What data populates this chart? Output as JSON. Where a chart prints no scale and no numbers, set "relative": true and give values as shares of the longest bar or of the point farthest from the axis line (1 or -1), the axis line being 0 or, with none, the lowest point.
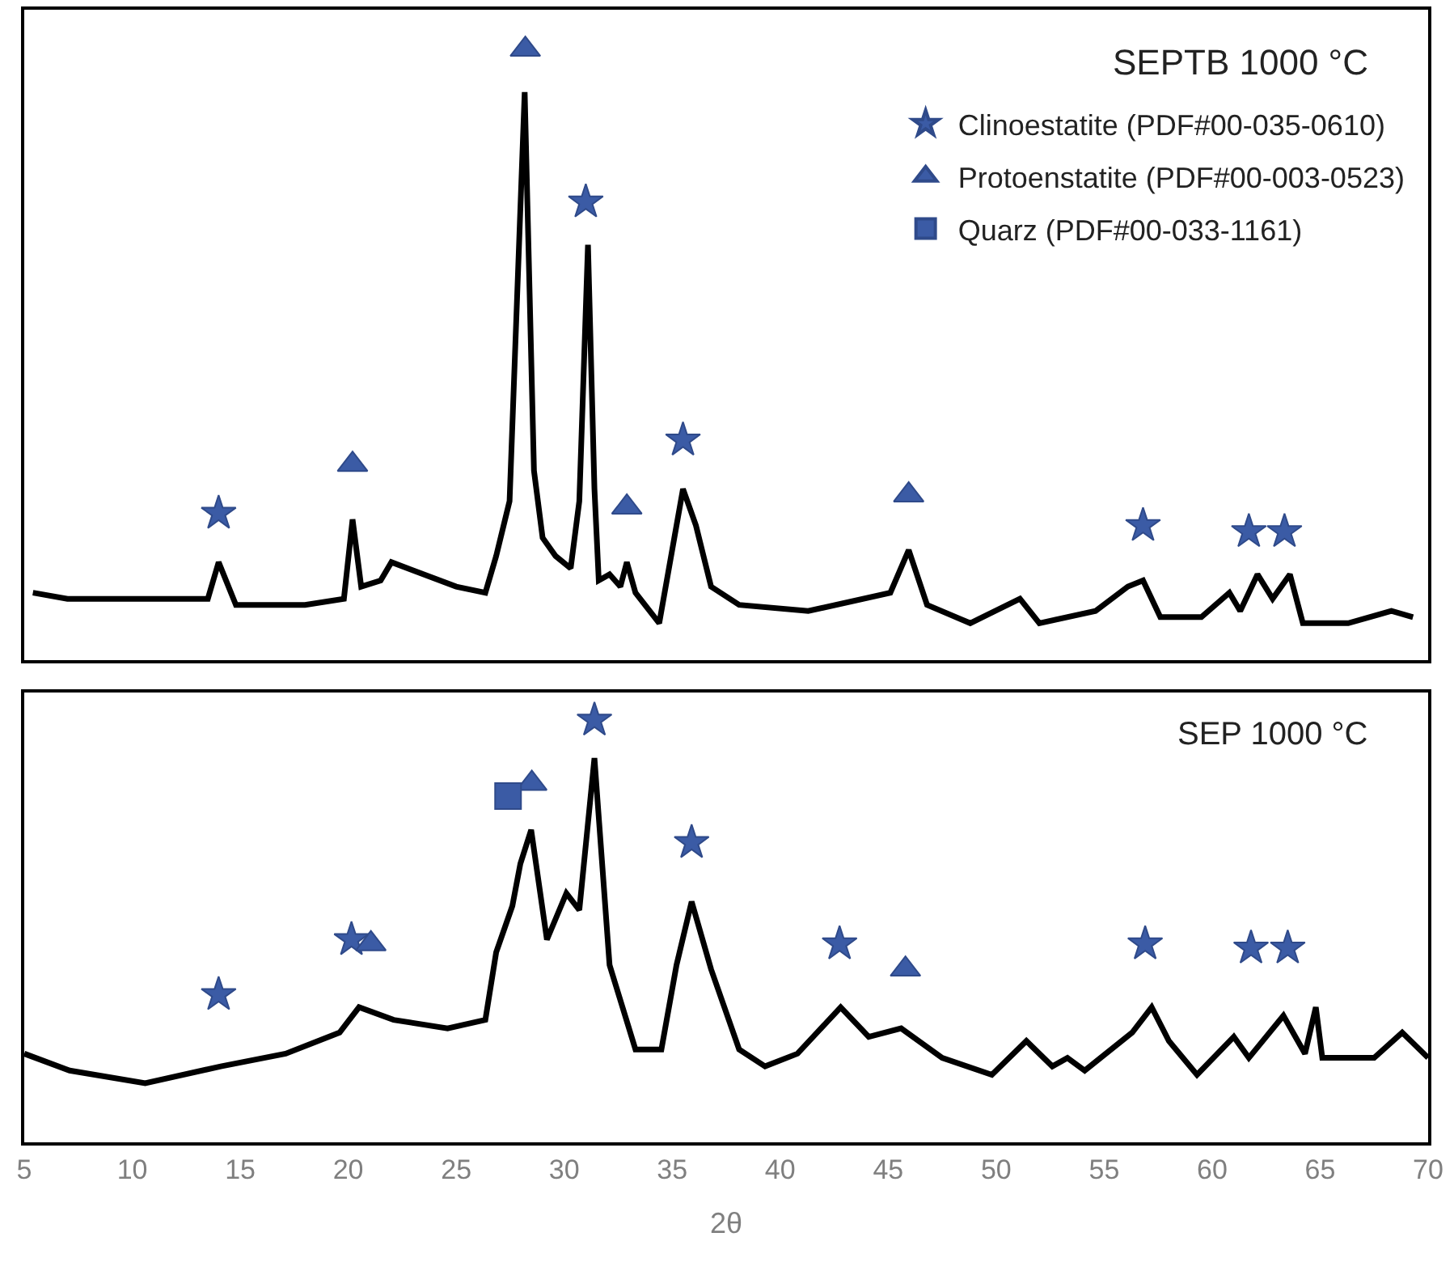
{
  "chart_data": [
    {
      "type": "line",
      "relative": true,
      "xlim": [
        5,
        70
      ],
      "tick_labels": false,
      "legend": "top right",
      "annotations": [
        "SEPTB 1000 °C"
      ],
      "series": [
        {
          "color": "#000000",
          "marker": "none",
          "x": [
            5.4,
            7.0,
            10.0,
            13.5,
            14.0,
            14.8,
            18.0,
            19.8,
            20.2,
            20.6,
            21.5,
            22.0,
            25.0,
            26.35,
            26.85,
            27.47,
            28.17,
            28.6,
            29.0,
            29.6,
            30.3,
            30.7,
            31.1,
            31.4,
            31.6,
            32.1,
            32.6,
            32.9,
            33.3,
            34.4,
            35.1,
            35.5,
            36.1,
            36.8,
            38.1,
            41.3,
            45.1,
            45.95,
            46.8,
            48.8,
            51.1,
            52.0,
            54.6,
            56.1,
            56.8,
            57.6,
            59.5,
            60.8,
            61.3,
            62.1,
            62.8,
            63.6,
            64.2,
            66.3,
            68.3,
            69.3
          ],
          "values": [
            0.11,
            0.1,
            0.1,
            0.1,
            0.16,
            0.09,
            0.09,
            0.1,
            0.23,
            0.12,
            0.13,
            0.16,
            0.12,
            0.11,
            0.17,
            0.26,
            0.93,
            0.31,
            0.2,
            0.17,
            0.15,
            0.26,
            0.68,
            0.28,
            0.13,
            0.14,
            0.12,
            0.16,
            0.11,
            0.06,
            0.2,
            0.28,
            0.22,
            0.12,
            0.09,
            0.08,
            0.11,
            0.18,
            0.09,
            0.06,
            0.1,
            0.06,
            0.08,
            0.12,
            0.13,
            0.07,
            0.07,
            0.11,
            0.08,
            0.14,
            0.1,
            0.14,
            0.06,
            0.06,
            0.08,
            0.07
          ]
        },
        {
          "type": "scatter",
          "name": "Clinoestatite (PDF#00-035-0610)",
          "color": "#3b5ba5",
          "marker": "star",
          "x": [
            14.0,
            31.0,
            35.5,
            56.8,
            61.7,
            63.35
          ],
          "values": [
            0.24,
            0.75,
            0.36,
            0.22,
            0.21,
            0.21
          ]
        },
        {
          "type": "scatter",
          "name": "Protoenstatite (PDF#00-003-0523)",
          "color": "#3b5ba5",
          "marker": "triangle",
          "x": [
            20.2,
            28.2,
            32.9,
            45.95
          ],
          "values": [
            0.32,
            1.0,
            0.25,
            0.27
          ]
        }
      ]
    },
    {
      "type": "line",
      "relative": true,
      "xlim": [
        5,
        70
      ],
      "xticks": [
        5,
        10,
        15,
        20,
        25,
        30,
        35,
        40,
        45,
        50,
        55,
        60,
        65,
        70
      ],
      "tick_labels": "x",
      "xlabel": "2θ",
      "annotations": [
        "SEP 1000 °C"
      ],
      "series": [
        {
          "color": "#000000",
          "marker": "none",
          "x": [
            5.0,
            7.1,
            10.6,
            14.1,
            17.1,
            19.6,
            20.5,
            22.1,
            24.6,
            26.35,
            26.85,
            27.6,
            27.97,
            28.47,
            29.2,
            30.1,
            30.7,
            31.4,
            32.1,
            33.3,
            34.5,
            35.2,
            35.9,
            36.8,
            38.1,
            39.3,
            40.8,
            42.8,
            44.1,
            45.6,
            47.5,
            49.8,
            51.4,
            52.6,
            53.3,
            54.1,
            56.3,
            57.2,
            58.0,
            59.3,
            61.0,
            61.7,
            63.3,
            64.3,
            64.8,
            65.1,
            67.5,
            68.8,
            70.0
          ],
          "values": [
            0.21,
            0.17,
            0.14,
            0.18,
            0.21,
            0.26,
            0.32,
            0.29,
            0.27,
            0.29,
            0.45,
            0.56,
            0.66,
            0.74,
            0.48,
            0.59,
            0.55,
            0.91,
            0.42,
            0.22,
            0.22,
            0.42,
            0.57,
            0.41,
            0.22,
            0.18,
            0.21,
            0.32,
            0.25,
            0.27,
            0.2,
            0.16,
            0.24,
            0.18,
            0.2,
            0.17,
            0.26,
            0.32,
            0.24,
            0.16,
            0.25,
            0.2,
            0.3,
            0.21,
            0.32,
            0.2,
            0.2,
            0.26,
            0.2
          ]
        },
        {
          "type": "scatter",
          "name": "Clinoestatite (PDF#00-035-0610)",
          "color": "#3b5ba5",
          "marker": "star",
          "x": [
            14.0,
            20.15,
            31.4,
            35.9,
            42.75,
            56.9,
            61.8,
            63.5
          ],
          "values": [
            0.35,
            0.48,
            1.0,
            0.71,
            0.47,
            0.47,
            0.46,
            0.46
          ]
        },
        {
          "type": "scatter",
          "name": "Protoenstatite (PDF#00-003-0523)",
          "color": "#3b5ba5",
          "marker": "triangle",
          "x": [
            21.05,
            28.5,
            45.8
          ],
          "values": [
            0.47,
            0.85,
            0.41
          ]
        },
        {
          "type": "scatter",
          "name": "Quarz (PDF#00-033-1161)",
          "color": "#3b5ba5",
          "marker": "square",
          "x": [
            27.4
          ],
          "values": [
            0.82
          ]
        }
      ]
    }
  ]
}
